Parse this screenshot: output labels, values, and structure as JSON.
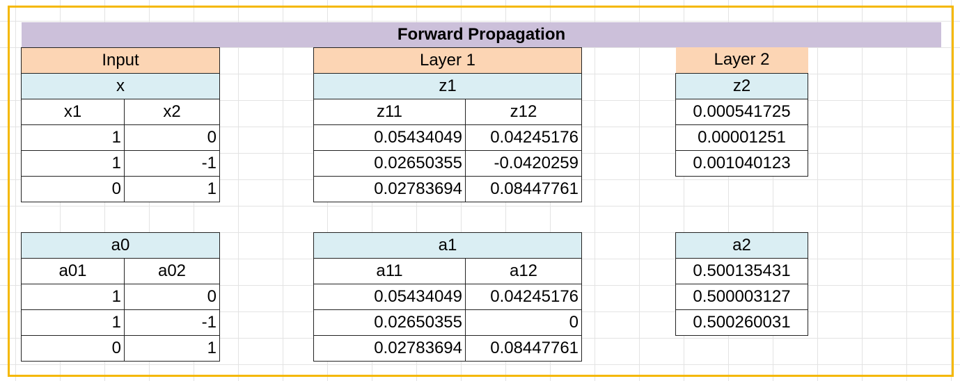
{
  "title": "Forward Propagation",
  "input": {
    "header": "Input",
    "x": {
      "label": "x",
      "cols": [
        "x1",
        "x2"
      ],
      "rows": [
        [
          "1",
          "0"
        ],
        [
          "1",
          "-1"
        ],
        [
          "0",
          "1"
        ]
      ]
    },
    "a0": {
      "label": "a0",
      "cols": [
        "a01",
        "a02"
      ],
      "rows": [
        [
          "1",
          "0"
        ],
        [
          "1",
          "-1"
        ],
        [
          "0",
          "1"
        ]
      ]
    }
  },
  "layer1": {
    "header": "Layer 1",
    "z1": {
      "label": "z1",
      "cols": [
        "z11",
        "z12"
      ],
      "rows": [
        [
          "0.05434049",
          "0.04245176"
        ],
        [
          "0.02650355",
          "-0.0420259"
        ],
        [
          "0.02783694",
          "0.08447761"
        ]
      ]
    },
    "a1": {
      "label": "a1",
      "cols": [
        "a11",
        "a12"
      ],
      "rows": [
        [
          "0.05434049",
          "0.04245176"
        ],
        [
          "0.02650355",
          "0"
        ],
        [
          "0.02783694",
          "0.08447761"
        ]
      ]
    }
  },
  "layer2": {
    "header": "Layer 2",
    "z2": {
      "label": "z2",
      "rows": [
        "0.000541725",
        "0.00001251",
        "0.001040123"
      ]
    },
    "a2": {
      "label": "a2",
      "rows": [
        "0.500135431",
        "0.500003127",
        "0.500260031"
      ]
    }
  },
  "colors": {
    "title_bg": "#ccc0da",
    "header_bg": "#fcd5b4",
    "subheader_bg": "#daeef3",
    "frame": "#f5b800"
  }
}
